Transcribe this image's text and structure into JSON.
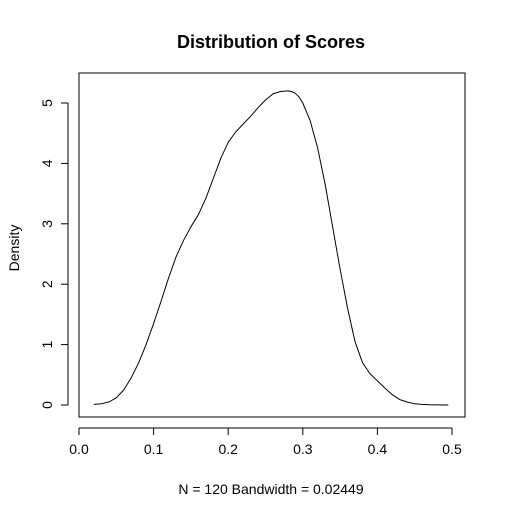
{
  "chart_data": {
    "type": "line",
    "title": "Distribution of Scores",
    "xlabel": "N = 120   Bandwidth = 0.02449",
    "ylabel": "Density",
    "xlim": [
      0.0,
      0.5
    ],
    "ylim": [
      0,
      5.25
    ],
    "xticks": [
      0.0,
      0.1,
      0.2,
      0.3,
      0.4,
      0.5
    ],
    "xtick_labels": [
      "0.0",
      "0.1",
      "0.2",
      "0.3",
      "0.4",
      "0.5"
    ],
    "yticks": [
      0,
      1,
      2,
      3,
      4,
      5
    ],
    "ytick_labels": [
      "0",
      "1",
      "2",
      "3",
      "4",
      "5"
    ],
    "grid": false,
    "series": [
      {
        "x": [
          0.02,
          0.03,
          0.04,
          0.05,
          0.06,
          0.07,
          0.08,
          0.09,
          0.1,
          0.11,
          0.12,
          0.13,
          0.14,
          0.15,
          0.16,
          0.17,
          0.18,
          0.19,
          0.2,
          0.21,
          0.22,
          0.23,
          0.24,
          0.25,
          0.26,
          0.27,
          0.28,
          0.285,
          0.29,
          0.295,
          0.3,
          0.31,
          0.32,
          0.33,
          0.34,
          0.35,
          0.36,
          0.37,
          0.38,
          0.39,
          0.4,
          0.41,
          0.42,
          0.43,
          0.44,
          0.45,
          0.46,
          0.47,
          0.48,
          0.495
        ],
        "y": [
          0.01,
          0.02,
          0.05,
          0.12,
          0.25,
          0.45,
          0.7,
          1.0,
          1.35,
          1.72,
          2.1,
          2.45,
          2.72,
          2.95,
          3.15,
          3.42,
          3.75,
          4.08,
          4.35,
          4.52,
          4.65,
          4.78,
          4.92,
          5.05,
          5.15,
          5.19,
          5.2,
          5.19,
          5.16,
          5.1,
          5.0,
          4.7,
          4.25,
          3.65,
          2.95,
          2.25,
          1.6,
          1.05,
          0.7,
          0.52,
          0.4,
          0.28,
          0.17,
          0.09,
          0.05,
          0.02,
          0.01,
          0.005,
          0.002,
          0.0
        ]
      }
    ],
    "line_color": "#000000",
    "axis_color": "#000000"
  }
}
